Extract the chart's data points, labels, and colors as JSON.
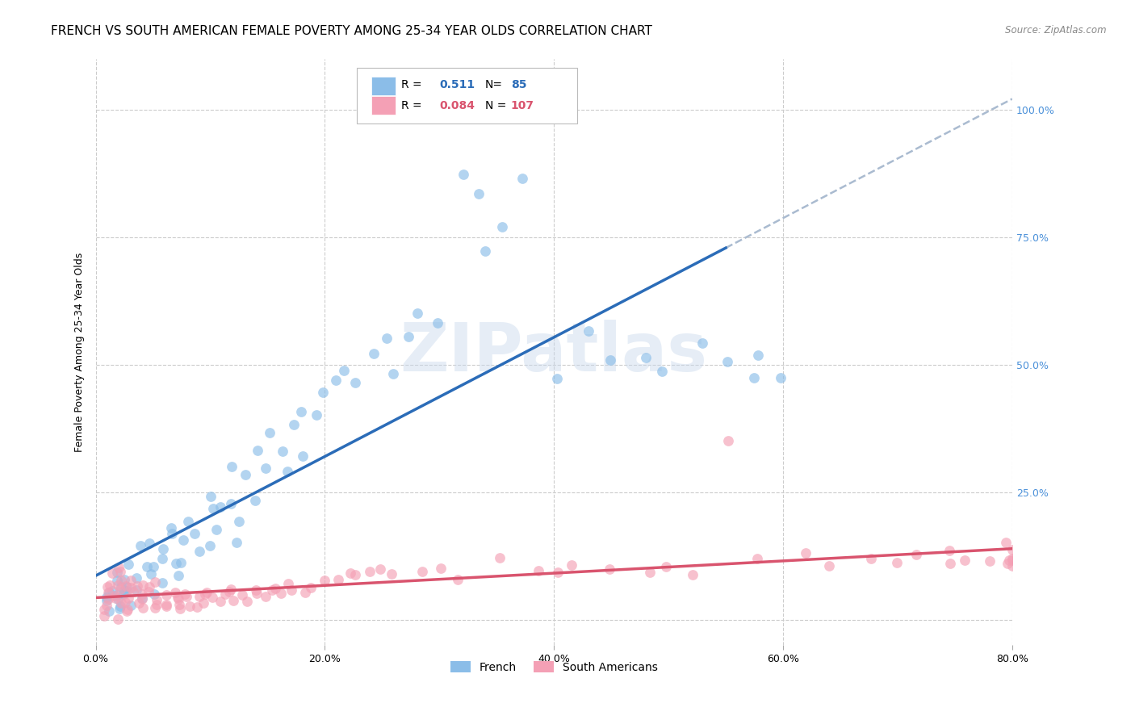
{
  "title": "FRENCH VS SOUTH AMERICAN FEMALE POVERTY AMONG 25-34 YEAR OLDS CORRELATION CHART",
  "source": "Source: ZipAtlas.com",
  "xlabel_ticks": [
    "0.0%",
    "20.0%",
    "40.0%",
    "60.0%",
    "80.0%"
  ],
  "ylabel": "Female Poverty Among 25-34 Year Olds",
  "right_ytick_labels": [
    "100.0%",
    "75.0%",
    "50.0%",
    "25.0%"
  ],
  "right_ytick_positions": [
    1.0,
    0.75,
    0.5,
    0.25
  ],
  "xlim": [
    0.0,
    0.8
  ],
  "ylim": [
    -0.05,
    1.1
  ],
  "french_color": "#8BBDE8",
  "sa_color": "#F4A0B5",
  "french_line_color": "#2B6CB8",
  "sa_line_color": "#D9546E",
  "dashed_line_color": "#AABBD0",
  "french_R": 0.511,
  "french_N": 85,
  "sa_R": 0.084,
  "sa_N": 107,
  "watermark": "ZIPatlas",
  "title_fontsize": 11,
  "axis_fontsize": 9,
  "tick_fontsize": 9,
  "seed": 42,
  "french_x": [
    0.01,
    0.01,
    0.01,
    0.01,
    0.01,
    0.02,
    0.02,
    0.02,
    0.02,
    0.02,
    0.02,
    0.02,
    0.02,
    0.03,
    0.03,
    0.03,
    0.03,
    0.03,
    0.03,
    0.04,
    0.04,
    0.04,
    0.04,
    0.04,
    0.05,
    0.05,
    0.05,
    0.05,
    0.06,
    0.06,
    0.06,
    0.06,
    0.07,
    0.07,
    0.07,
    0.08,
    0.08,
    0.08,
    0.09,
    0.09,
    0.1,
    0.1,
    0.1,
    0.11,
    0.11,
    0.12,
    0.12,
    0.12,
    0.13,
    0.13,
    0.14,
    0.14,
    0.15,
    0.15,
    0.16,
    0.17,
    0.17,
    0.18,
    0.18,
    0.19,
    0.2,
    0.21,
    0.22,
    0.23,
    0.24,
    0.25,
    0.26,
    0.27,
    0.28,
    0.3,
    0.32,
    0.33,
    0.34,
    0.35,
    0.38,
    0.4,
    0.43,
    0.45,
    0.48,
    0.5,
    0.53,
    0.55,
    0.57,
    0.58,
    0.6
  ],
  "french_y": [
    0.02,
    0.03,
    0.05,
    0.06,
    0.04,
    0.04,
    0.05,
    0.07,
    0.08,
    0.03,
    0.06,
    0.09,
    0.02,
    0.05,
    0.08,
    0.12,
    0.06,
    0.03,
    0.07,
    0.06,
    0.1,
    0.13,
    0.04,
    0.08,
    0.09,
    0.12,
    0.15,
    0.05,
    0.1,
    0.14,
    0.07,
    0.18,
    0.12,
    0.16,
    0.08,
    0.15,
    0.2,
    0.1,
    0.18,
    0.13,
    0.2,
    0.25,
    0.15,
    0.22,
    0.18,
    0.24,
    0.3,
    0.16,
    0.28,
    0.2,
    0.32,
    0.24,
    0.3,
    0.36,
    0.34,
    0.38,
    0.28,
    0.42,
    0.32,
    0.4,
    0.44,
    0.48,
    0.5,
    0.46,
    0.52,
    0.55,
    0.48,
    0.56,
    0.6,
    0.58,
    0.88,
    0.82,
    0.72,
    0.78,
    0.86,
    0.48,
    0.56,
    0.5,
    0.52,
    0.48,
    0.54,
    0.5,
    0.46,
    0.52,
    0.48
  ],
  "sa_x": [
    0.01,
    0.01,
    0.01,
    0.01,
    0.01,
    0.01,
    0.01,
    0.01,
    0.02,
    0.02,
    0.02,
    0.02,
    0.02,
    0.02,
    0.02,
    0.02,
    0.02,
    0.02,
    0.03,
    0.03,
    0.03,
    0.03,
    0.03,
    0.03,
    0.03,
    0.04,
    0.04,
    0.04,
    0.04,
    0.04,
    0.04,
    0.05,
    0.05,
    0.05,
    0.05,
    0.05,
    0.05,
    0.06,
    0.06,
    0.06,
    0.06,
    0.07,
    0.07,
    0.07,
    0.07,
    0.08,
    0.08,
    0.08,
    0.09,
    0.09,
    0.09,
    0.1,
    0.1,
    0.1,
    0.11,
    0.11,
    0.12,
    0.12,
    0.12,
    0.13,
    0.13,
    0.14,
    0.14,
    0.15,
    0.15,
    0.16,
    0.16,
    0.17,
    0.17,
    0.18,
    0.19,
    0.2,
    0.21,
    0.22,
    0.23,
    0.24,
    0.25,
    0.26,
    0.28,
    0.3,
    0.32,
    0.35,
    0.38,
    0.4,
    0.42,
    0.45,
    0.48,
    0.5,
    0.52,
    0.55,
    0.58,
    0.62,
    0.65,
    0.68,
    0.7,
    0.72,
    0.74,
    0.75,
    0.76,
    0.78,
    0.79,
    0.8,
    0.8,
    0.8,
    0.8,
    0.8,
    0.8
  ],
  "sa_y": [
    0.01,
    0.02,
    0.03,
    0.04,
    0.05,
    0.06,
    0.07,
    0.08,
    0.01,
    0.02,
    0.03,
    0.04,
    0.05,
    0.06,
    0.07,
    0.08,
    0.09,
    0.1,
    0.02,
    0.03,
    0.04,
    0.05,
    0.06,
    0.07,
    0.08,
    0.02,
    0.03,
    0.04,
    0.05,
    0.06,
    0.07,
    0.02,
    0.03,
    0.04,
    0.05,
    0.06,
    0.07,
    0.02,
    0.03,
    0.04,
    0.05,
    0.02,
    0.03,
    0.04,
    0.05,
    0.03,
    0.04,
    0.05,
    0.03,
    0.04,
    0.05,
    0.03,
    0.04,
    0.05,
    0.04,
    0.05,
    0.04,
    0.05,
    0.06,
    0.04,
    0.05,
    0.05,
    0.06,
    0.05,
    0.06,
    0.05,
    0.06,
    0.06,
    0.07,
    0.06,
    0.07,
    0.08,
    0.08,
    0.09,
    0.08,
    0.09,
    0.1,
    0.09,
    0.1,
    0.1,
    0.08,
    0.12,
    0.1,
    0.09,
    0.1,
    0.1,
    0.09,
    0.1,
    0.09,
    0.35,
    0.12,
    0.13,
    0.11,
    0.12,
    0.11,
    0.12,
    0.13,
    0.1,
    0.12,
    0.11,
    0.15,
    0.1,
    0.11,
    0.12,
    0.12,
    0.13,
    0.14
  ]
}
